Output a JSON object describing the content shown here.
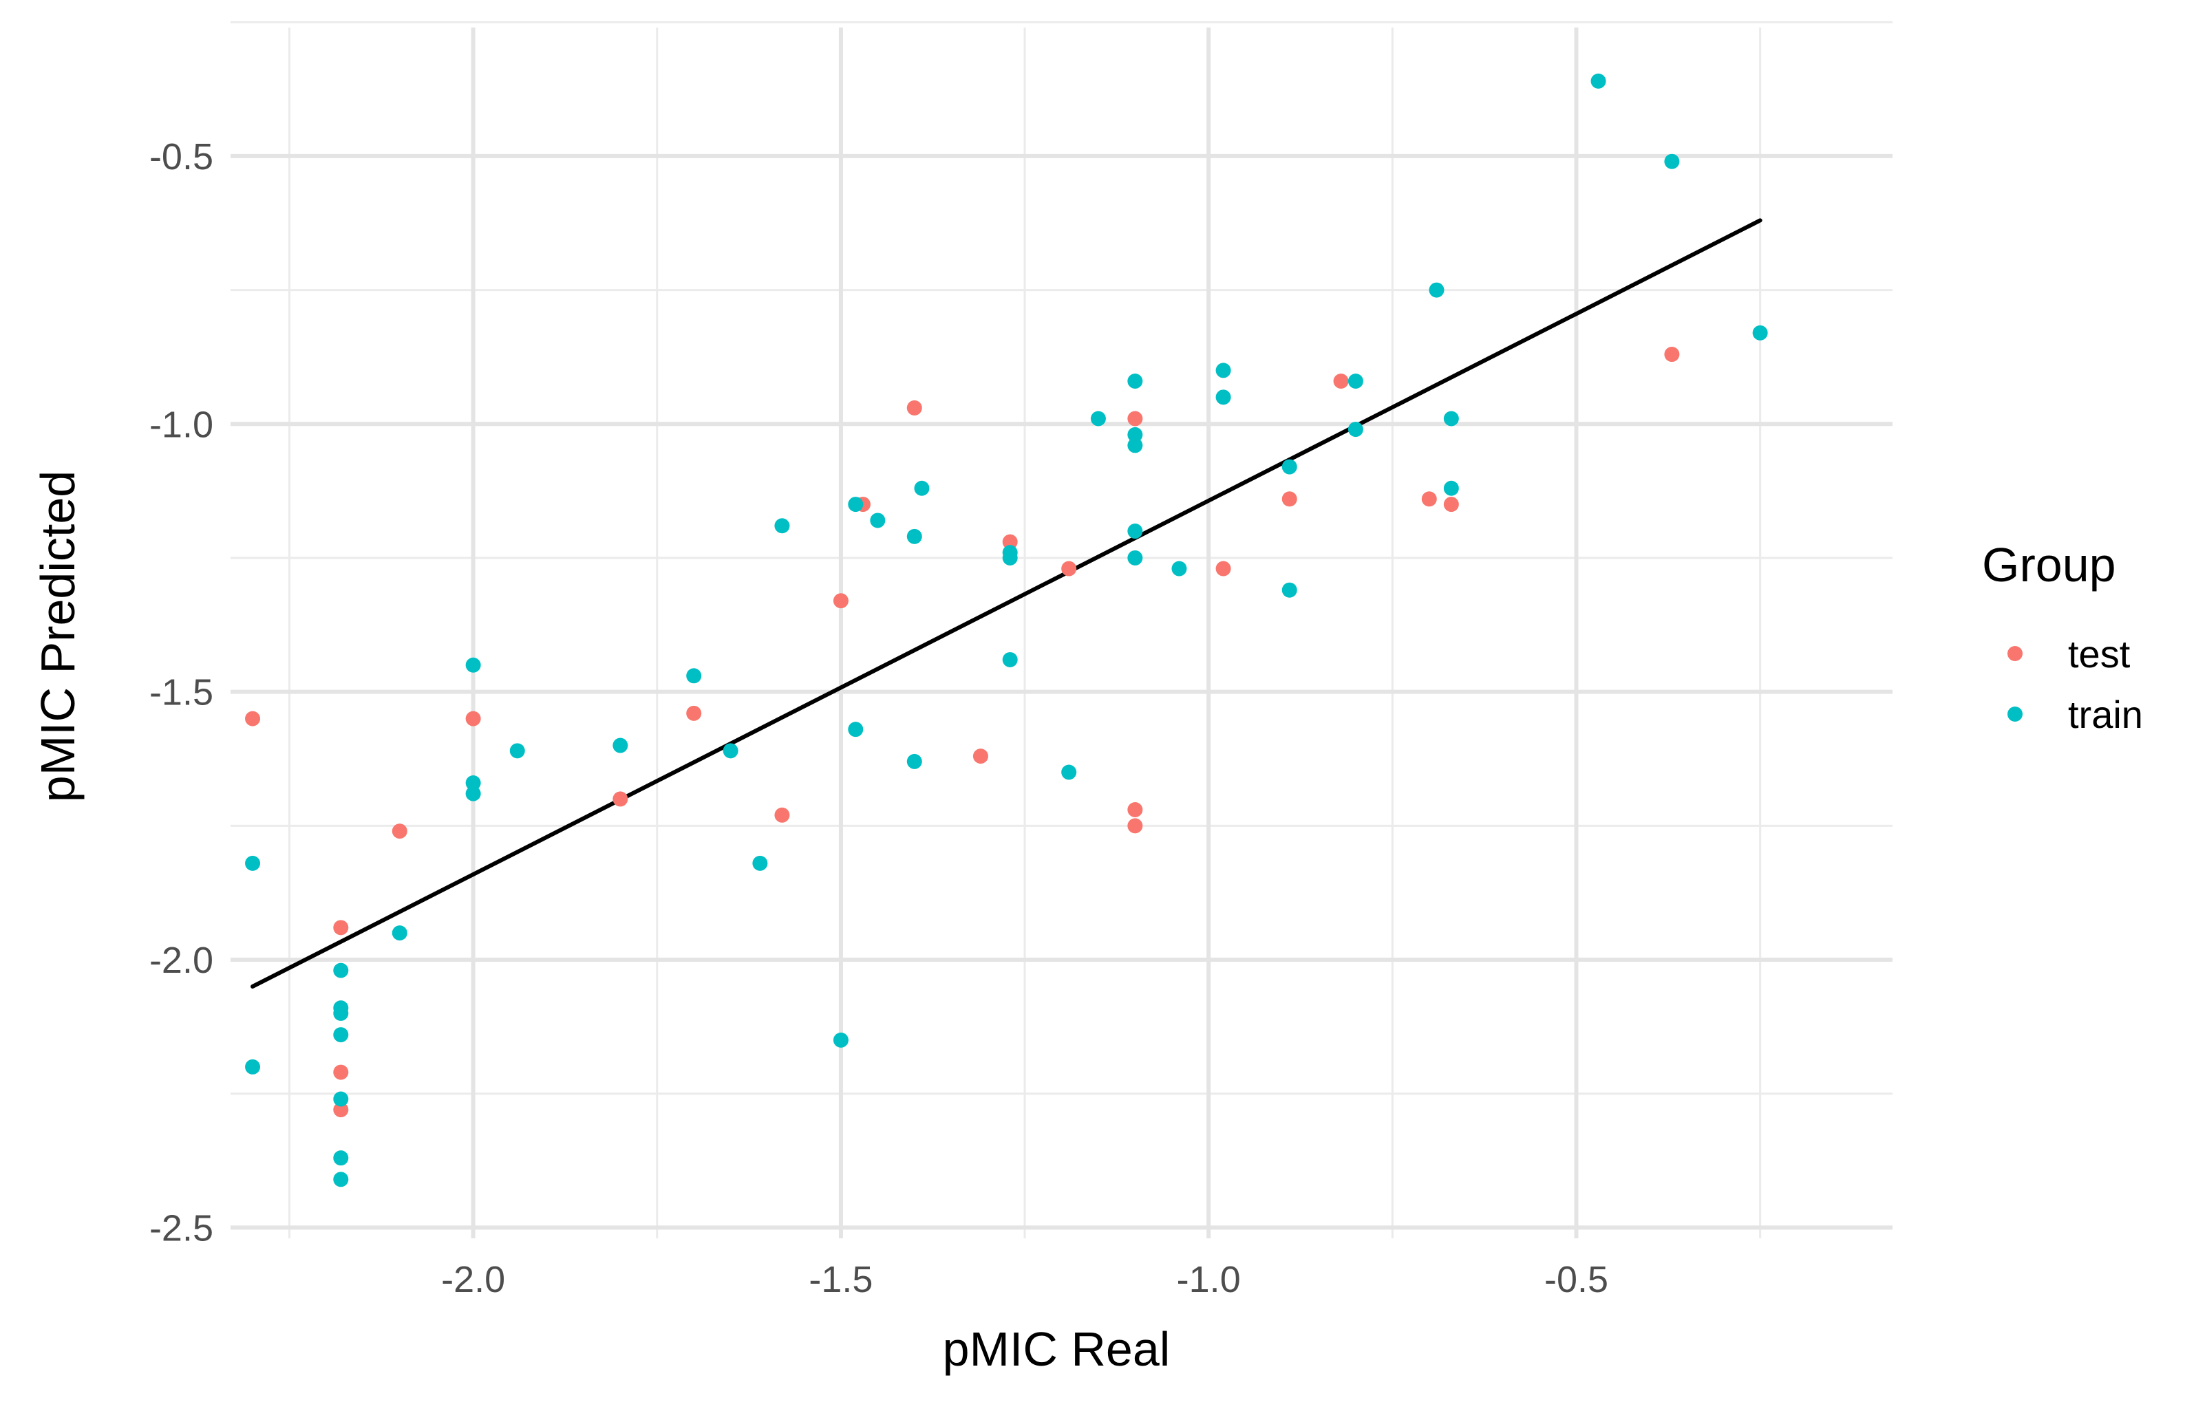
{
  "chart_data": {
    "type": "scatter",
    "title": "",
    "xlabel": "pMIC Real",
    "ylabel": "pMIC Predicted",
    "xlim": [
      -2.33,
      -0.07
    ],
    "ylim": [
      -2.52,
      -0.26
    ],
    "x_ticks": [
      -2.0,
      -1.5,
      -1.0,
      -0.5
    ],
    "x_tick_labels": [
      "-2.0",
      "-1.5",
      "-1.0",
      "-0.5"
    ],
    "y_ticks": [
      -2.5,
      -2.0,
      -1.5,
      -1.0,
      -0.5
    ],
    "y_tick_labels": [
      "-2.5",
      "-2.0",
      "-1.5",
      "-1.0",
      "-0.5"
    ],
    "grid": true,
    "legend": {
      "title": "Group",
      "position": "right",
      "entries": [
        {
          "label": "test",
          "color": "#F8766D"
        },
        {
          "label": "train",
          "color": "#00BFC4"
        }
      ]
    },
    "fit_line": {
      "x": [
        -2.3,
        -0.25
      ],
      "y": [
        -2.05,
        -0.62
      ],
      "color": "#000000"
    },
    "series": [
      {
        "name": "test",
        "color": "#F8766D",
        "points": [
          [
            -2.3,
            -1.55
          ],
          [
            -2.18,
            -1.94
          ],
          [
            -2.18,
            -2.21
          ],
          [
            -2.18,
            -2.28
          ],
          [
            -2.1,
            -1.76
          ],
          [
            -2.0,
            -1.55
          ],
          [
            -1.8,
            -1.7
          ],
          [
            -1.7,
            -1.54
          ],
          [
            -1.58,
            -1.73
          ],
          [
            -1.5,
            -1.33
          ],
          [
            -1.47,
            -1.15
          ],
          [
            -1.4,
            -0.97
          ],
          [
            -1.31,
            -1.62
          ],
          [
            -1.27,
            -1.22
          ],
          [
            -1.19,
            -1.27
          ],
          [
            -1.1,
            -0.99
          ],
          [
            -1.1,
            -1.72
          ],
          [
            -1.1,
            -1.75
          ],
          [
            -0.98,
            -1.27
          ],
          [
            -0.89,
            -1.14
          ],
          [
            -0.82,
            -0.92
          ],
          [
            -0.7,
            -1.14
          ],
          [
            -0.67,
            -1.15
          ],
          [
            -0.37,
            -0.87
          ]
        ]
      },
      {
        "name": "train",
        "color": "#00BFC4",
        "points": [
          [
            -2.3,
            -1.82
          ],
          [
            -2.3,
            -2.2
          ],
          [
            -2.18,
            -2.02
          ],
          [
            -2.18,
            -2.09
          ],
          [
            -2.18,
            -2.1
          ],
          [
            -2.18,
            -2.14
          ],
          [
            -2.18,
            -2.26
          ],
          [
            -2.18,
            -2.37
          ],
          [
            -2.18,
            -2.41
          ],
          [
            -2.1,
            -1.95
          ],
          [
            -2.0,
            -1.45
          ],
          [
            -2.0,
            -1.67
          ],
          [
            -2.0,
            -1.69
          ],
          [
            -1.94,
            -1.61
          ],
          [
            -1.8,
            -1.6
          ],
          [
            -1.7,
            -1.47
          ],
          [
            -1.65,
            -1.61
          ],
          [
            -1.61,
            -1.82
          ],
          [
            -1.58,
            -1.19
          ],
          [
            -1.5,
            -2.15
          ],
          [
            -1.48,
            -1.57
          ],
          [
            -1.48,
            -1.15
          ],
          [
            -1.45,
            -1.18
          ],
          [
            -1.4,
            -1.21
          ],
          [
            -1.4,
            -1.63
          ],
          [
            -1.39,
            -1.12
          ],
          [
            -1.27,
            -1.24
          ],
          [
            -1.27,
            -1.25
          ],
          [
            -1.27,
            -1.44
          ],
          [
            -1.19,
            -1.65
          ],
          [
            -1.15,
            -0.99
          ],
          [
            -1.1,
            -0.92
          ],
          [
            -1.1,
            -1.02
          ],
          [
            -1.1,
            -1.04
          ],
          [
            -1.1,
            -1.2
          ],
          [
            -1.1,
            -1.25
          ],
          [
            -1.04,
            -1.27
          ],
          [
            -0.98,
            -0.9
          ],
          [
            -0.98,
            -0.95
          ],
          [
            -0.89,
            -1.08
          ],
          [
            -0.89,
            -1.31
          ],
          [
            -0.8,
            -0.92
          ],
          [
            -0.8,
            -1.01
          ],
          [
            -0.69,
            -0.75
          ],
          [
            -0.67,
            -0.99
          ],
          [
            -0.67,
            -1.12
          ],
          [
            -0.47,
            -0.36
          ],
          [
            -0.37,
            -0.51
          ],
          [
            -0.25,
            -0.83
          ]
        ]
      }
    ]
  }
}
